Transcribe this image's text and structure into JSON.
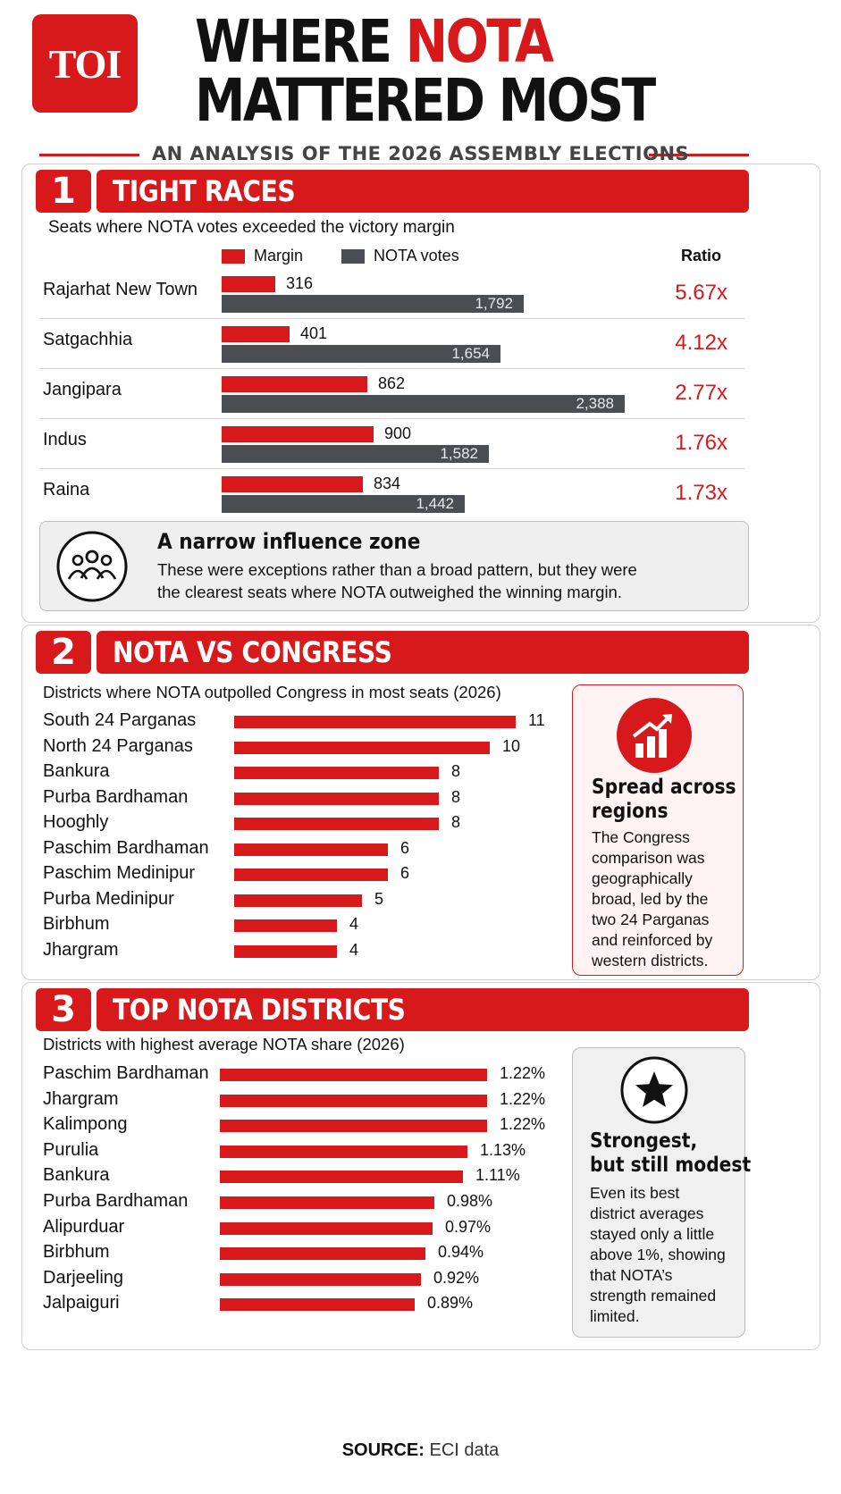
{
  "header": {
    "logo": "TOI",
    "title_line1_a": "WHERE ",
    "title_line1_b": "NOTA",
    "title_line2": "MATTERED MOST",
    "subtitle": "AN ANALYSIS OF THE 2026 ASSEMBLY ELECTIONS"
  },
  "section1": {
    "number": "1",
    "heading": "TIGHT RACES",
    "caption": "Seats where NOTA votes exceeded the victory margin",
    "legend_margin": "Margin",
    "legend_nota": "NOTA votes",
    "ratio_header": "Ratio",
    "note_title": "A narrow influence zone",
    "note_line1": "These were exceptions rather than a broad pattern, but they were",
    "note_line2": "the clearest seats where NOTA outweighed the winning margin.",
    "icon": "people-group-icon"
  },
  "section2": {
    "number": "2",
    "heading": "NOTA VS CONGRESS",
    "caption": "Districts where NOTA outpolled Congress in most seats (2026)",
    "side_title_1": "Spread across",
    "side_title_2": "regions",
    "side_text": [
      "The Congress",
      "comparison was",
      "geographically",
      "broad, led by the",
      "two 24 Parganas",
      "and reinforced by",
      "western districts."
    ],
    "icon": "growth-chart-icon"
  },
  "section3": {
    "number": "3",
    "heading": "TOP NOTA DISTRICTS",
    "caption": "Districts with highest average NOTA share (2026)",
    "side_title_1": "Strongest,",
    "side_title_2": "but still modest",
    "side_text": [
      "Even its best",
      "district averages",
      "stayed only a little",
      "above 1%, showing",
      "that NOTA’s",
      "strength remained",
      "limited."
    ],
    "icon": "star-icon"
  },
  "source_label": "SOURCE:",
  "source_text": " ECI data",
  "colors": {
    "accent": "#d7191b",
    "nota_gray": "#4a4d52"
  },
  "chart_data": [
    {
      "type": "bar",
      "title": "TIGHT RACES",
      "subtitle": "Seats where NOTA votes exceeded the victory margin",
      "categories": [
        "Rajarhat New Town",
        "Satgachhia",
        "Jangipara",
        "Indus",
        "Raina"
      ],
      "series": [
        {
          "name": "Margin",
          "values": [
            316,
            401,
            862,
            900,
            834
          ],
          "labels": [
            "316",
            "401",
            "862",
            "900",
            "834"
          ]
        },
        {
          "name": "NOTA votes",
          "values": [
            1792,
            1654,
            2388,
            1582,
            1442
          ],
          "labels": [
            "1,792",
            "1,654",
            "2,388",
            "1,582",
            "1,442"
          ]
        }
      ],
      "ratio": [
        "5.67x",
        "4.12x",
        "2.77x",
        "1.76x",
        "1.73x"
      ],
      "xlim": [
        0,
        2388
      ],
      "legend": "top",
      "grid": false
    },
    {
      "type": "bar",
      "title": "NOTA VS CONGRESS",
      "subtitle": "Districts where NOTA outpolled Congress in most seats (2026)",
      "categories": [
        "South 24 Parganas",
        "North 24 Parganas",
        "Bankura",
        "Purba Bardhaman",
        "Hooghly",
        "Paschim Bardhaman",
        "Paschim Medinipur",
        "Purba Medinipur",
        "Birbhum",
        "Jhargram"
      ],
      "values": [
        11,
        10,
        8,
        8,
        8,
        6,
        6,
        5,
        4,
        4
      ],
      "labels": [
        "11",
        "10",
        "8",
        "8",
        "8",
        "6",
        "6",
        "5",
        "4",
        "4"
      ],
      "xlim": [
        0,
        11
      ],
      "grid": false
    },
    {
      "type": "bar",
      "title": "TOP NOTA DISTRICTS",
      "subtitle": "Districts with highest average NOTA share (2026)",
      "categories": [
        "Paschim Bardhaman",
        "Jhargram",
        "Kalimpong",
        "Purulia",
        "Bankura",
        "Purba Bardhaman",
        "Alipurduar",
        "Birbhum",
        "Darjeeling",
        "Jalpaiguri"
      ],
      "values": [
        1.22,
        1.22,
        1.22,
        1.13,
        1.11,
        0.98,
        0.97,
        0.94,
        0.92,
        0.89
      ],
      "labels": [
        "1.22%",
        "1.22%",
        "1.22%",
        "1.13%",
        "1.11%",
        "0.98%",
        "0.97%",
        "0.94%",
        "0.92%",
        "0.89%"
      ],
      "xlim": [
        0,
        1.22
      ],
      "grid": false
    }
  ]
}
